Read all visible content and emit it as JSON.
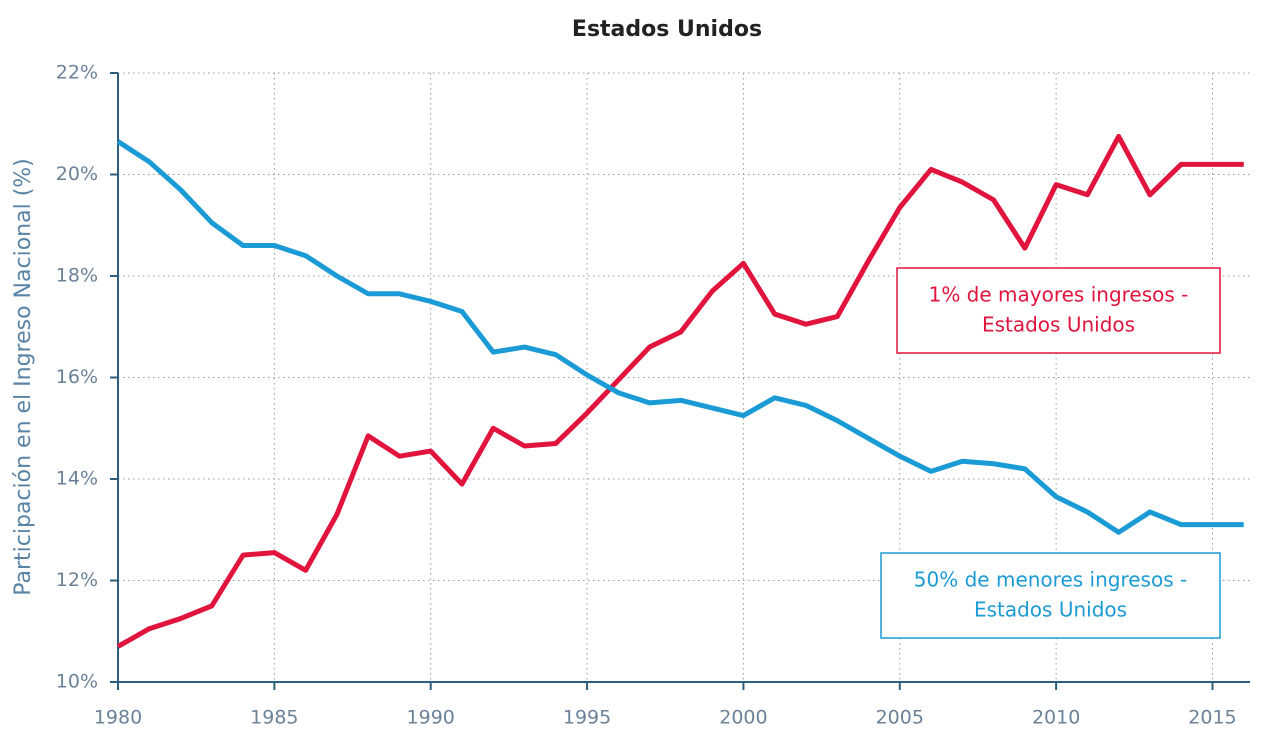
{
  "chart_data": {
    "type": "line",
    "title": "Estados Unidos",
    "y_label": "Participación en el Ingreso Nacional (%)",
    "x": [
      1980,
      1981,
      1982,
      1983,
      1984,
      1985,
      1986,
      1987,
      1988,
      1989,
      1990,
      1991,
      1992,
      1993,
      1994,
      1995,
      1996,
      1997,
      1998,
      1999,
      2000,
      2001,
      2002,
      2003,
      2004,
      2005,
      2006,
      2007,
      2008,
      2009,
      2010,
      2011,
      2012,
      2013,
      2014,
      2015,
      2016
    ],
    "series": [
      {
        "color": "#e0143c",
        "values": [
          10.7,
          11.05,
          11.25,
          11.5,
          12.5,
          12.55,
          12.2,
          13.3,
          14.85,
          14.45,
          14.55,
          13.9,
          15.0,
          14.65,
          14.7,
          15.3,
          15.95,
          16.6,
          16.9,
          17.7,
          18.25,
          17.25,
          17.05,
          17.2,
          18.3,
          19.35,
          20.1,
          19.85,
          19.5,
          18.55,
          19.8,
          19.6,
          20.75,
          19.6,
          20.2,
          20.2,
          20.2
        ]
      },
      {
        "color": "#1b9bd5",
        "values": [
          20.65,
          20.25,
          19.7,
          19.05,
          18.6,
          18.6,
          18.4,
          18.0,
          17.65,
          17.65,
          17.5,
          17.3,
          16.5,
          16.6,
          16.45,
          16.05,
          15.7,
          15.5,
          15.55,
          15.4,
          15.25,
          15.6,
          15.45,
          15.15,
          14.8,
          14.45,
          14.15,
          14.35,
          14.3,
          14.2,
          13.65,
          13.35,
          12.95,
          13.35,
          13.1,
          13.1,
          13.1
        ]
      }
    ],
    "annotations": [
      {
        "lines": [
          "1% de mayores ingresos -",
          "Estados Unidos"
        ],
        "color": "#e0143c"
      },
      {
        "lines": [
          "50% de menores ingresos -",
          "Estados Unidos"
        ],
        "color": "#1b9bd5"
      }
    ],
    "xlim": [
      1980,
      2016.2
    ],
    "ylim": [
      10,
      22
    ],
    "xticks": [
      1980,
      1985,
      1990,
      1995,
      2000,
      2005,
      2010,
      2015
    ],
    "yticks": [
      {
        "value": 10,
        "label": "10%"
      },
      {
        "value": 12,
        "label": "12%"
      },
      {
        "value": 14,
        "label": "14%"
      },
      {
        "value": 16,
        "label": "16%"
      },
      {
        "value": 18,
        "label": "18%"
      },
      {
        "value": 20,
        "label": "20%"
      },
      {
        "value": 22,
        "label": "22%"
      }
    ],
    "grid": true
  }
}
